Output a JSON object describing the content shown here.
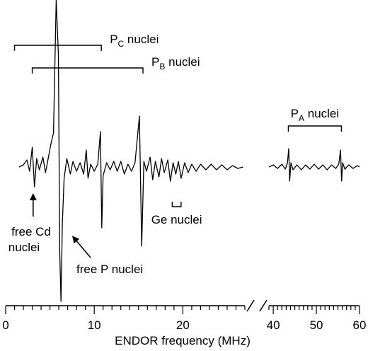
{
  "chart_data": {
    "type": "line",
    "title": "",
    "xlabel": "ENDOR frequency (MHz)",
    "ylabel": "",
    "grid": false,
    "legend": "none",
    "x_axis": {
      "segments": [
        {
          "range": [
            0,
            27
          ],
          "ticks": [
            0,
            10,
            20
          ],
          "minor_step": 1
        },
        {
          "range": [
            39,
            60
          ],
          "ticks": [
            40,
            50,
            60
          ],
          "minor_step": 1
        }
      ],
      "tick_labels": [
        "0",
        "10",
        "20",
        "40",
        "50",
        "60"
      ],
      "break_between": [
        27,
        39
      ]
    },
    "series": [
      {
        "segment": 0,
        "note_points": "x in MHz, y in arbitrary relative amplitude (0 = baseline)",
        "points": [
          [
            1.5,
            0.0
          ],
          [
            2.0,
            0.15
          ],
          [
            2.4,
            0.5
          ],
          [
            2.7,
            -0.3
          ],
          [
            3.0,
            1.4
          ],
          [
            3.25,
            -1.4
          ],
          [
            3.5,
            0.6
          ],
          [
            3.8,
            -0.2
          ],
          [
            4.2,
            0.7
          ],
          [
            4.5,
            -0.4
          ],
          [
            4.8,
            0.6
          ],
          [
            5.1,
            1.6
          ],
          [
            5.4,
            2.4
          ],
          [
            5.7,
            12.0
          ],
          [
            5.95,
            8.0
          ],
          [
            6.1,
            -6.0
          ],
          [
            6.25,
            -11.0
          ],
          [
            6.4,
            -4.0
          ],
          [
            6.6,
            -0.8
          ],
          [
            6.9,
            0.6
          ],
          [
            7.3,
            -0.5
          ],
          [
            7.6,
            0.4
          ],
          [
            8.0,
            -0.3
          ],
          [
            8.4,
            0.3
          ],
          [
            8.8,
            -0.5
          ],
          [
            9.1,
            1.2
          ],
          [
            9.3,
            -0.8
          ],
          [
            9.6,
            0.2
          ],
          [
            10.0,
            -0.3
          ],
          [
            10.4,
            0.2
          ],
          [
            10.7,
            2.5
          ],
          [
            10.85,
            -4.3
          ],
          [
            11.0,
            -0.6
          ],
          [
            11.4,
            0.3
          ],
          [
            11.8,
            -0.2
          ],
          [
            12.2,
            0.4
          ],
          [
            12.6,
            -0.3
          ],
          [
            13.0,
            0.4
          ],
          [
            13.4,
            -0.5
          ],
          [
            13.8,
            0.2
          ],
          [
            14.2,
            -0.3
          ],
          [
            14.6,
            0.3
          ],
          [
            15.1,
            3.6
          ],
          [
            15.35,
            -5.6
          ],
          [
            15.6,
            0.4
          ],
          [
            15.9,
            -0.3
          ],
          [
            16.3,
            0.7
          ],
          [
            16.6,
            -0.9
          ],
          [
            16.9,
            0.4
          ],
          [
            17.3,
            -0.7
          ],
          [
            17.6,
            0.6
          ],
          [
            17.9,
            -0.4
          ],
          [
            18.3,
            0.5
          ],
          [
            18.6,
            -1.0
          ],
          [
            18.9,
            0.3
          ],
          [
            19.2,
            -0.5
          ],
          [
            19.5,
            0.4
          ],
          [
            19.8,
            -0.8
          ],
          [
            20.2,
            0.3
          ],
          [
            20.6,
            -0.4
          ],
          [
            21.0,
            0.2
          ],
          [
            21.5,
            -0.3
          ],
          [
            22.0,
            0.2
          ],
          [
            22.6,
            -0.2
          ],
          [
            23.2,
            0.2
          ],
          [
            23.8,
            -0.2
          ],
          [
            24.4,
            0.15
          ],
          [
            25.0,
            -0.2
          ],
          [
            25.6,
            0.1
          ],
          [
            26.2,
            -0.1
          ],
          [
            26.8,
            0.0
          ]
        ]
      },
      {
        "segment": 1,
        "note_points": "x in MHz, y in arbitrary relative amplitude (0 = baseline)",
        "points": [
          [
            39.0,
            0.0
          ],
          [
            40.0,
            0.15
          ],
          [
            41.0,
            -0.1
          ],
          [
            42.0,
            0.2
          ],
          [
            42.8,
            -0.15
          ],
          [
            43.3,
            0.3
          ],
          [
            43.6,
            1.3
          ],
          [
            43.8,
            -1.0
          ],
          [
            44.1,
            0.3
          ],
          [
            44.6,
            -0.2
          ],
          [
            45.5,
            0.15
          ],
          [
            46.5,
            -0.2
          ],
          [
            47.5,
            0.15
          ],
          [
            48.5,
            -0.15
          ],
          [
            49.5,
            0.2
          ],
          [
            50.5,
            -0.15
          ],
          [
            51.5,
            0.15
          ],
          [
            52.5,
            -0.2
          ],
          [
            53.5,
            0.15
          ],
          [
            54.5,
            -0.1
          ],
          [
            55.2,
            0.2
          ],
          [
            55.6,
            1.2
          ],
          [
            55.85,
            -1.0
          ],
          [
            56.1,
            0.3
          ],
          [
            56.6,
            -0.15
          ],
          [
            57.5,
            0.15
          ],
          [
            58.5,
            -0.1
          ],
          [
            59.5,
            0.1
          ],
          [
            60.0,
            0.0
          ]
        ]
      }
    ],
    "annotations": [
      {
        "kind": "bracket",
        "label_main": "P",
        "label_sub": "C",
        "label_tail": " nuclei",
        "x_from": 1.0,
        "x_to": 10.8
      },
      {
        "kind": "bracket",
        "label_main": "P",
        "label_sub": "B",
        "label_tail": " nuclei",
        "x_from": 3.0,
        "x_to": 15.5
      },
      {
        "kind": "bracket",
        "label_main": "P",
        "label_sub": "A",
        "label_tail": " nuclei",
        "x_from": 43.5,
        "x_to": 55.8
      },
      {
        "kind": "small_bracket",
        "label": "Ge nuclei",
        "x_from": 18.8,
        "x_to": 19.8
      },
      {
        "kind": "arrow",
        "line1": "free Cd",
        "line2": "nuclei",
        "x": 3.1
      },
      {
        "kind": "arrow",
        "label": "free P nuclei",
        "x": 6.6
      }
    ]
  }
}
